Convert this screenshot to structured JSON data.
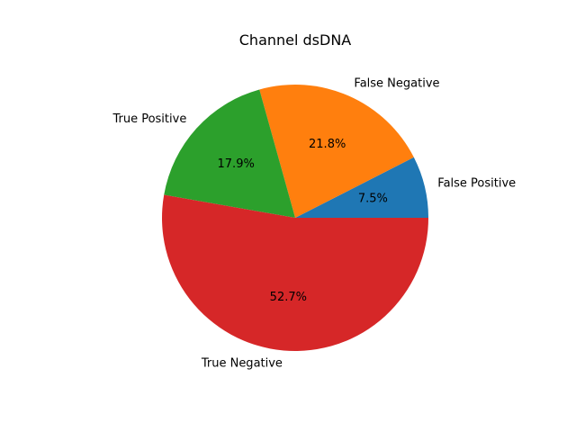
{
  "chart_data": {
    "type": "pie",
    "title": "Channel dsDNA",
    "categories": [
      "False Positive",
      "False Negative",
      "True Positive",
      "True Negative"
    ],
    "values": [
      7.5,
      21.8,
      17.9,
      52.7
    ],
    "percent_labels": [
      "7.5%",
      "21.8%",
      "17.9%",
      "52.7%"
    ],
    "colors": [
      "#1f77b4",
      "#ff7f0e",
      "#2ca02c",
      "#d62728"
    ],
    "start_angle_deg": 0,
    "direction": "counterclockwise",
    "legend": "none"
  }
}
